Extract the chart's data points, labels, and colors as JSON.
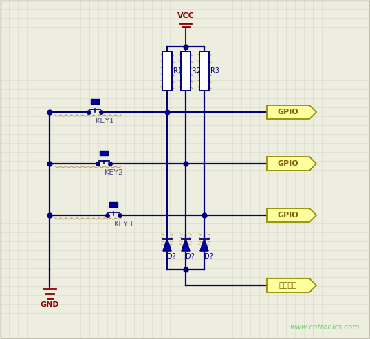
{
  "bg_color": "#eeeee0",
  "grid_color": "#d8d8c8",
  "wire_color": "#000080",
  "vcc_color": "#8B0000",
  "gnd_color": "#8B0000",
  "gpio_bg": "#FFFFA0",
  "gpio_border": "#909000",
  "gpio_text": "#806000",
  "watermark": "www.cntronics.com",
  "watermark_color": "#70CC70",
  "title_vcc": "VCC",
  "title_gnd": "GND",
  "keys": [
    "KEY1",
    "KEY2",
    "KEY3"
  ],
  "resistors": [
    "R1",
    "R2",
    "R3"
  ],
  "diodes": [
    "D?",
    "D?",
    "D?"
  ],
  "gpio_labels": [
    "GPIO",
    "GPIO",
    "GPIO"
  ],
  "ext_label": "外部中断",
  "key_label_color": "#505080",
  "res_label_color": "#000080",
  "zigzag_color": "#c0a060"
}
